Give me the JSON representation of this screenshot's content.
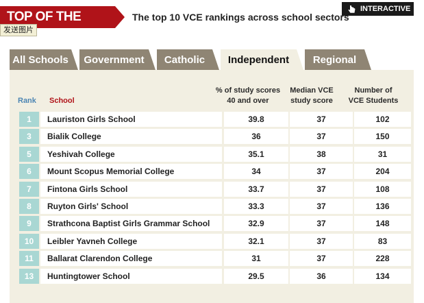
{
  "header": {
    "title": "TOP OF THE CLASS",
    "subtitle": "The top 10 VCE rankings across school sectors",
    "interactive_label": "INTERACTIVE",
    "send_image_label": "发送图片"
  },
  "tabs": [
    {
      "label": "All Schools",
      "active": false
    },
    {
      "label": "Government",
      "active": false
    },
    {
      "label": "Catholic",
      "active": false
    },
    {
      "label": "Independent",
      "active": true
    },
    {
      "label": "Regional",
      "active": false
    }
  ],
  "table": {
    "headers": {
      "rank": "Rank",
      "school": "School",
      "pct": [
        "% of study scores",
        "40 and over"
      ],
      "median": [
        "Median VCE",
        "study score"
      ],
      "number": [
        "Number of",
        "VCE Students"
      ]
    },
    "rows": [
      {
        "rank": "1",
        "school": "Lauriston Girls School",
        "pct": "39.8",
        "median": "37",
        "number": "102"
      },
      {
        "rank": "3",
        "school": "Bialik College",
        "pct": "36",
        "median": "37",
        "number": "150"
      },
      {
        "rank": "5",
        "school": "Yeshivah College",
        "pct": "35.1",
        "median": "38",
        "number": "31"
      },
      {
        "rank": "6",
        "school": "Mount Scopus Memorial College",
        "pct": "34",
        "median": "37",
        "number": "204"
      },
      {
        "rank": "7",
        "school": "Fintona Girls School",
        "pct": "33.7",
        "median": "37",
        "number": "108"
      },
      {
        "rank": "8",
        "school": "Ruyton Girls' School",
        "pct": "33.3",
        "median": "37",
        "number": "136"
      },
      {
        "rank": "9",
        "school": "Strathcona Baptist Girls Grammar School",
        "pct": "32.9",
        "median": "37",
        "number": "148"
      },
      {
        "rank": "10",
        "school": "Leibler Yavneh College",
        "pct": "32.1",
        "median": "37",
        "number": "83"
      },
      {
        "rank": "11",
        "school": "Ballarat Clarendon College",
        "pct": "31",
        "median": "37",
        "number": "228"
      },
      {
        "rank": "13",
        "school": "Huntingtower School",
        "pct": "29.5",
        "median": "36",
        "number": "134"
      }
    ]
  },
  "colors": {
    "brand_red": "#b01319",
    "tab_inactive": "#8f8574",
    "panel_bg": "#f2efe2",
    "rank_cell": "#a9d7d3",
    "rank_header": "#4d86b3"
  },
  "icons": {
    "interactive": "cursor-hand-icon"
  }
}
